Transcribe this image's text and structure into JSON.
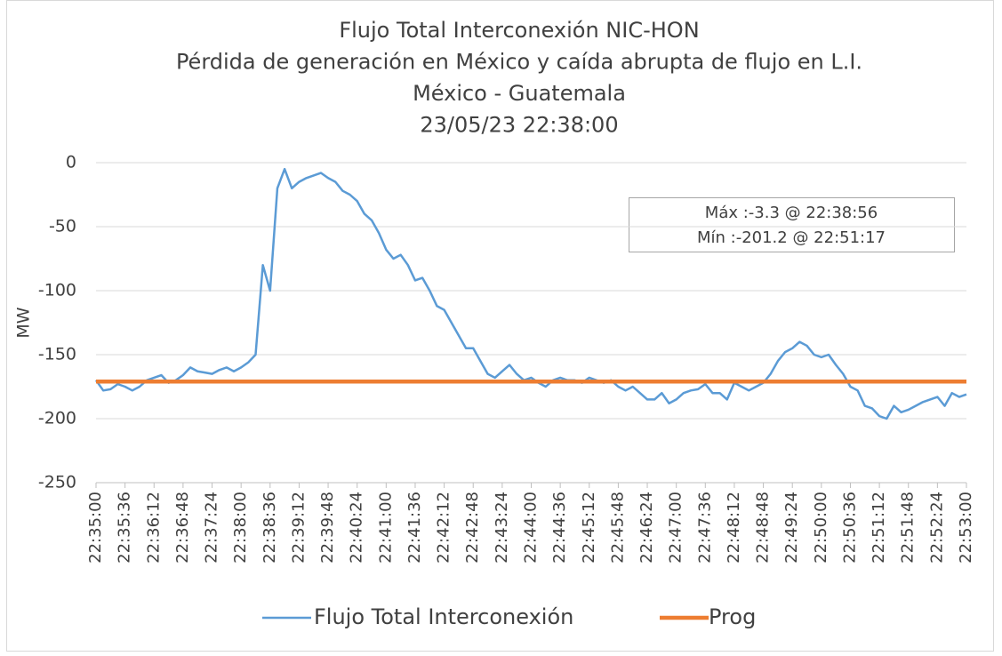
{
  "chart_data": {
    "type": "line",
    "title": [
      "Flujo Total Interconexión NIC-HON",
      "Pérdida de generación en México y caída abrupta de flujo en L.I.",
      "México - Guatemala",
      "23/05/23 22:38:00"
    ],
    "ylabel": "MW",
    "annotations": [
      "Máx :-3.3 @ 22:38:56",
      "Mín :-201.2 @ 22:51:17"
    ],
    "categories": [
      "22:35:00",
      null,
      null,
      null,
      "22:35:36",
      null,
      null,
      null,
      "22:36:12",
      null,
      null,
      null,
      "22:36:48",
      null,
      null,
      null,
      "22:37:24",
      null,
      null,
      null,
      "22:38:00",
      null,
      null,
      null,
      "22:38:36",
      null,
      null,
      null,
      "22:39:12",
      null,
      null,
      null,
      "22:39:48",
      null,
      null,
      null,
      "22:40:24",
      null,
      null,
      null,
      "22:41:00",
      null,
      null,
      null,
      "22:41:36",
      null,
      null,
      null,
      "22:42:12",
      null,
      null,
      null,
      "22:42:48",
      null,
      null,
      null,
      "22:43:24",
      null,
      null,
      null,
      "22:44:00",
      null,
      null,
      null,
      "22:44:36",
      null,
      null,
      null,
      "22:45:12",
      null,
      null,
      null,
      "22:45:48",
      null,
      null,
      null,
      "22:46:24",
      null,
      null,
      null,
      "22:47:00",
      null,
      null,
      null,
      "22:47:36",
      null,
      null,
      null,
      "22:48:12",
      null,
      null,
      null,
      "22:48:48",
      null,
      null,
      null,
      "22:49:24",
      null,
      null,
      null,
      "22:50:00",
      null,
      null,
      null,
      "22:50:36",
      null,
      null,
      null,
      "22:51:12",
      null,
      null,
      null,
      "22:51:48",
      null,
      null,
      null,
      "22:52:24",
      null,
      null,
      null,
      "22:53:00"
    ],
    "series": [
      {
        "name": "Flujo Total Interconexión",
        "color": "#5b9bd5",
        "values": [
          -170,
          -178,
          -177,
          -173,
          -175,
          -178,
          -175,
          -170,
          -168,
          -166,
          -172,
          -170,
          -166,
          -160,
          -163,
          -164,
          -165,
          -162,
          -160,
          -163,
          -160,
          -156,
          -150,
          -80,
          -100,
          -20,
          -5,
          -20,
          -15,
          -12,
          -10,
          -8,
          -12,
          -15,
          -22,
          -25,
          -30,
          -40,
          -45,
          -55,
          -68,
          -75,
          -72,
          -80,
          -92,
          -90,
          -100,
          -112,
          -115,
          -125,
          -135,
          -145,
          -145,
          -155,
          -165,
          -168,
          -163,
          -158,
          -165,
          -170,
          -168,
          -172,
          -175,
          -170,
          -168,
          -170,
          -170,
          -172,
          -168,
          -170,
          -172,
          -170,
          -175,
          -178,
          -175,
          -180,
          -185,
          -185,
          -180,
          -188,
          -185,
          -180,
          -178,
          -177,
          -173,
          -180,
          -180,
          -185,
          -172,
          -175,
          -178,
          -175,
          -172,
          -165,
          -155,
          -148,
          -145,
          -140,
          -143,
          -150,
          -152,
          -150,
          -158,
          -165,
          -175,
          -178,
          -190,
          -192,
          -198,
          -200,
          -190,
          -195,
          -193,
          -190,
          -187,
          -185,
          -183,
          -190,
          -180,
          -183,
          -181
        ]
      },
      {
        "name": "Prog",
        "color": "#ed7d31",
        "values": [
          -171,
          -171,
          -171,
          -171,
          -171,
          -171,
          -171,
          -171,
          -171,
          -171,
          -171,
          -171,
          -171,
          -171,
          -171,
          -171,
          -171,
          -171,
          -171,
          -171,
          -171,
          -171,
          -171,
          -171,
          -171,
          -171,
          -171,
          -171,
          -171,
          -171,
          -171,
          -171,
          -171,
          -171,
          -171,
          -171,
          -171,
          -171,
          -171,
          -171,
          -171,
          -171,
          -171,
          -171,
          -171,
          -171,
          -171,
          -171,
          -171,
          -171,
          -171,
          -171,
          -171,
          -171,
          -171,
          -171,
          -171,
          -171,
          -171,
          -171,
          -171,
          -171,
          -171,
          -171,
          -171,
          -171,
          -171,
          -171,
          -171,
          -171,
          -171,
          -171,
          -171,
          -171,
          -171,
          -171,
          -171,
          -171,
          -171,
          -171,
          -171,
          -171,
          -171,
          -171,
          -171,
          -171,
          -171,
          -171,
          -171,
          -171,
          -171,
          -171,
          -171,
          -171,
          -171,
          -171,
          -171,
          -171,
          -171,
          -171,
          -171,
          -171,
          -171,
          -171,
          -171,
          -171,
          -171,
          -171,
          -171,
          -171,
          -171,
          -171,
          -171,
          -171,
          -171,
          -171,
          -171,
          -171,
          -171,
          -171,
          -171
        ]
      }
    ],
    "ylim": [
      -250,
      0
    ],
    "yticks": [
      -250,
      -200,
      -150,
      -100,
      -50,
      0
    ],
    "grid": true,
    "legend": "bottom"
  }
}
